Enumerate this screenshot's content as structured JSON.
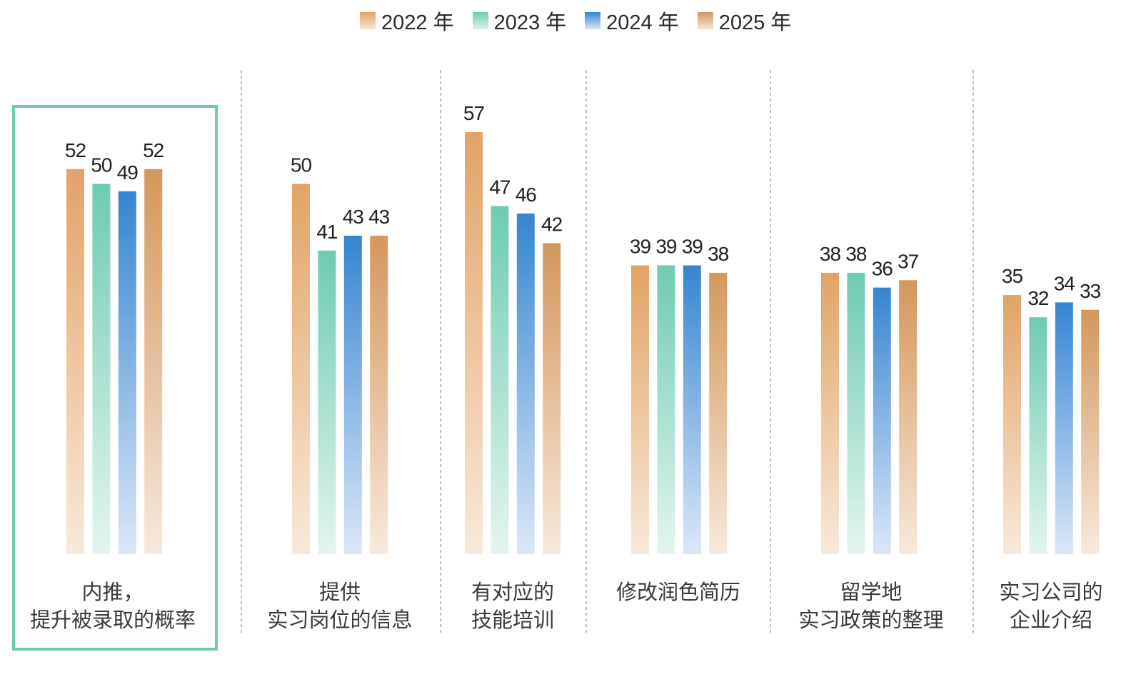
{
  "chart_data": {
    "type": "bar",
    "title": "",
    "xlabel": "",
    "ylabel": "",
    "ylim": [
      0,
      60
    ],
    "grid": false,
    "legend_position": "top-center",
    "categories": [
      "内推，\n提升被录取的概率",
      "提供\n实习岗位的信息",
      "有对应的\n技能培训",
      "修改润色简历",
      "留学地\n实习政策的整理",
      "实习公司的\n企业介绍"
    ],
    "series": [
      {
        "name": "2022 年",
        "color": "#e2a365",
        "values": [
          52,
          50,
          57,
          39,
          38,
          35
        ]
      },
      {
        "name": "2023 年",
        "color": "#6ecbb2",
        "values": [
          50,
          41,
          47,
          39,
          38,
          32
        ]
      },
      {
        "name": "2024 年",
        "color": "#3585d1",
        "values": [
          49,
          43,
          46,
          39,
          36,
          34
        ]
      },
      {
        "name": "2025 年",
        "color": "#d4975c",
        "values": [
          52,
          43,
          42,
          38,
          37,
          33
        ]
      }
    ],
    "highlighted_category": "内推，\n提升被录取的概率"
  }
}
